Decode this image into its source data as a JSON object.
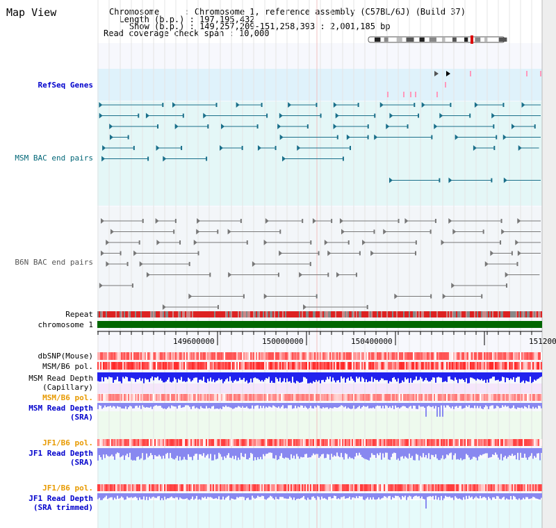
{
  "title": "Map View",
  "header": {
    "chromosome_label": "Chromosome",
    "chromosome_value": "Chromosome 1, reference assembly (C57BL/6J) (Build 37)",
    "length_label": "Length (b.p.)",
    "length_value": "197,195,432",
    "show_label": "Show (b.p.)",
    "show_value": "149,257,209-151,258,393 : 2,001,185 bp",
    "span_label": "Read coverage check span",
    "span_value": "10,000"
  },
  "tracks": {
    "refseq": "RefSeq Genes",
    "msm_bac": "MSM BAC end pairs",
    "b6n_bac": "B6N BAC end pairs",
    "repeat": "Repeat",
    "chromosome": "chromosome 1",
    "dbsnp": "dbSNP(Mouse)",
    "msm_b6_pol_1": "MSM/B6 pol.",
    "msm_depth_cap_1": "MSM Read Depth",
    "msm_depth_cap_2": "(Capillary)",
    "msm_b6_pol_2": "MSM/B6 pol.",
    "msm_depth_sra_1": "MSM Read Depth",
    "msm_depth_sra_2": "(SRA)",
    "jf1_b6_pol_1": "JF1/B6 pol.",
    "jf1_depth_sra_1": "JF1 Read Depth",
    "jf1_depth_sra_2": "(SRA)",
    "jf1_b6_pol_2": "JF1/B6 pol.",
    "jf1_depth_trim_1": "JF1 Read Depth",
    "jf1_depth_trim_2": "(SRA trimmed)"
  },
  "axis_ticks": [
    "149600000",
    "150000000",
    "150400000",
    "151200"
  ],
  "colors": {
    "refseq_bg": "#dff2fb",
    "msm_bac_line": "#1a6f8a",
    "b6n_bac_line": "#777777",
    "chromosome_bar": "#006600",
    "repeat_red": "#dd2222",
    "depth_blue": "#2222ee",
    "depth_light": "#8888f0"
  }
}
